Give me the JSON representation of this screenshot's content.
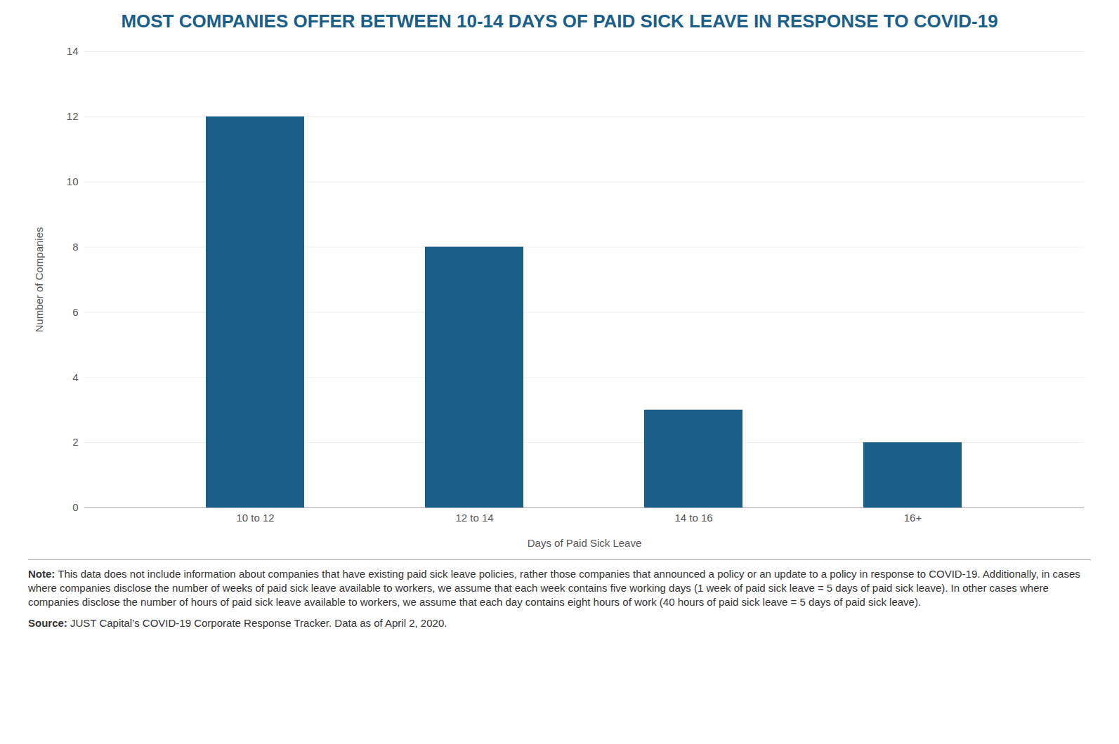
{
  "chart_data": {
    "type": "bar",
    "title": "MOST COMPANIES OFFER BETWEEN 10-14 DAYS OF PAID SICK LEAVE IN RESPONSE TO COVID-19",
    "x_label": "Days of Paid Sick Leave",
    "y_label": "Number of Companies",
    "categories": [
      "10 to 12",
      "12 to 14",
      "14 to 16",
      "16+"
    ],
    "values": [
      12,
      8,
      3,
      2
    ],
    "color": "#1a5f8a",
    "ylim": [
      0,
      14
    ],
    "yticks": [
      0,
      2,
      4,
      6,
      8,
      10,
      12,
      14
    ],
    "grid": true,
    "annotations": [
      "Note: This data does not include information about companies that have existing paid sick leave policies, rather those companies that announced a policy or an update to a policy in response to COVID-19. Additionally, in cases where companies disclose the number of weeks of paid sick leave available to workers, we assume that each week contains five working days (1 week of paid sick leave = 5 days of paid sick leave). In other cases where companies disclose the number of hours of paid sick leave available to workers, we assume that each day contains eight hours of work (40 hours of paid sick leave = 5 days of paid sick leave).",
      "Source: JUST Capital’s COVID-19 Corporate Response Tracker. Data as of April 2, 2020."
    ]
  }
}
